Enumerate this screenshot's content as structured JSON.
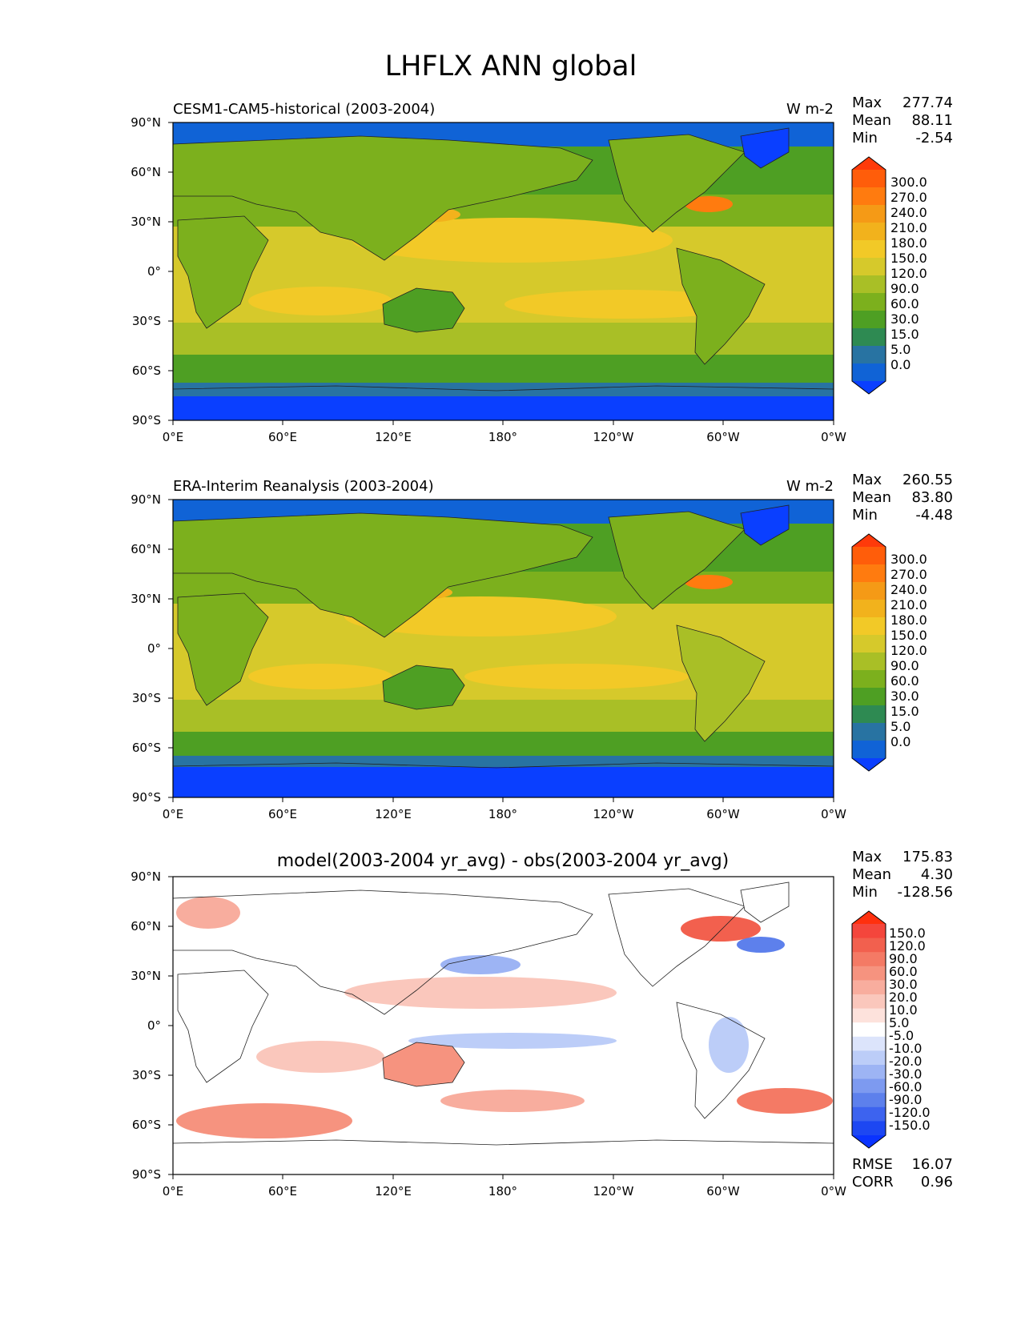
{
  "figure": {
    "title": "LHFLX ANN global"
  },
  "axes": {
    "lat_ticks": [
      "90°N",
      "60°N",
      "30°N",
      "0°",
      "30°S",
      "60°S",
      "90°S"
    ],
    "lon_ticks": [
      "0°E",
      "60°E",
      "120°E",
      "180°",
      "120°W",
      "60°W",
      "0°W"
    ]
  },
  "chart_data": [
    {
      "type": "heatmap",
      "title": "CESM1-CAM5-historical (2003-2004)",
      "units": "W m-2",
      "stats": {
        "max_label": "Max",
        "max": "277.74",
        "mean_label": "Mean",
        "mean": "88.11",
        "min_label": "Min",
        "min": "-2.54"
      },
      "colorbar": {
        "levels": [
          "300.0",
          "270.0",
          "240.0",
          "210.0",
          "180.0",
          "150.0",
          "120.0",
          "90.0",
          "60.0",
          "30.0",
          "15.0",
          "5.0",
          "0.0"
        ],
        "colors": [
          "#ff3a0a",
          "#ff5d0a",
          "#ff7b0f",
          "#f59a16",
          "#f2b21c",
          "#f2c927",
          "#d6c92b",
          "#a9bf26",
          "#7cb01d",
          "#4e9f23",
          "#2e8a52",
          "#2873a2",
          "#1063d6",
          "#0a3fff"
        ]
      }
    },
    {
      "type": "heatmap",
      "title": "ERA-Interim Reanalysis (2003-2004)",
      "units": "W m-2",
      "stats": {
        "max_label": "Max",
        "max": "260.55",
        "mean_label": "Mean",
        "mean": "83.80",
        "min_label": "Min",
        "min": "-4.48"
      },
      "colorbar": {
        "levels": [
          "300.0",
          "270.0",
          "240.0",
          "210.0",
          "180.0",
          "150.0",
          "120.0",
          "90.0",
          "60.0",
          "30.0",
          "15.0",
          "5.0",
          "0.0"
        ],
        "colors": [
          "#ff3a0a",
          "#ff5d0a",
          "#ff7b0f",
          "#f59a16",
          "#f2b21c",
          "#f2c927",
          "#d6c92b",
          "#a9bf26",
          "#7cb01d",
          "#4e9f23",
          "#2e8a52",
          "#2873a2",
          "#1063d6",
          "#0a3fff"
        ]
      }
    },
    {
      "type": "heatmap",
      "title": "model(2003-2004 yr_avg) - obs(2003-2004 yr_avg)",
      "units": "",
      "stats": {
        "max_label": "Max",
        "max": "175.83",
        "mean_label": "Mean",
        "mean": "4.30",
        "min_label": "Min",
        "min": "-128.56"
      },
      "extra_stats": {
        "rmse_label": "RMSE",
        "rmse": "16.07",
        "corr_label": "CORR",
        "corr": "0.96"
      },
      "colorbar": {
        "levels": [
          "150.0",
          "120.0",
          "90.0",
          "60.0",
          "30.0",
          "20.0",
          "10.0",
          "5.0",
          "-5.0",
          "-10.0",
          "-20.0",
          "-30.0",
          "-60.0",
          "-90.0",
          "-120.0",
          "-150.0"
        ],
        "colors": [
          "#ff300e",
          "#f4463c",
          "#f2604e",
          "#f47a65",
          "#f6937f",
          "#f8ad9e",
          "#fac7bc",
          "#fde2dc",
          "#ffffff",
          "#dce4fb",
          "#bccdf8",
          "#9db4f4",
          "#7d9af0",
          "#5d80ec",
          "#3d63ef",
          "#1d47f2",
          "#0a33ff"
        ]
      }
    }
  ]
}
